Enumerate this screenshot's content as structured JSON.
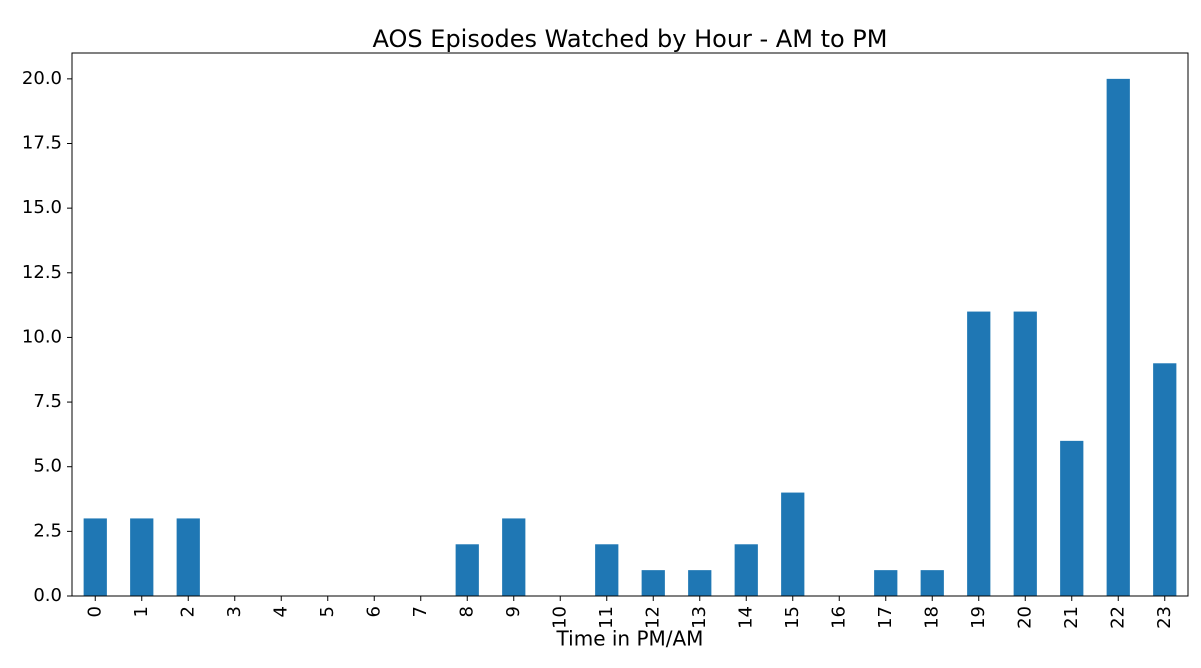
{
  "chart_data": {
    "type": "bar",
    "title": "AOS Episodes Watched by Hour - AM to PM",
    "x_label": "Time in PM/AM",
    "categories": [
      "0",
      "1",
      "2",
      "3",
      "4",
      "5",
      "6",
      "7",
      "8",
      "9",
      "10",
      "11",
      "12",
      "13",
      "14",
      "15",
      "16",
      "17",
      "18",
      "19",
      "20",
      "21",
      "22",
      "23"
    ],
    "values": [
      3,
      3,
      3,
      0,
      0,
      0,
      0,
      0,
      2,
      3,
      0,
      2,
      1,
      1,
      2,
      4,
      0,
      1,
      1,
      11,
      11,
      6,
      20,
      9
    ],
    "color": "#1f77b4",
    "ylim": [
      0,
      21
    ],
    "yticks": [
      {
        "value": 0,
        "label": "0.0"
      },
      {
        "value": 2.5,
        "label": "2.5"
      },
      {
        "value": 5,
        "label": "5.0"
      },
      {
        "value": 7.5,
        "label": "7.5"
      },
      {
        "value": 10,
        "label": "10.0"
      },
      {
        "value": 12.5,
        "label": "12.5"
      },
      {
        "value": 15,
        "label": "15.0"
      },
      {
        "value": 17.5,
        "label": "17.5"
      },
      {
        "value": 20,
        "label": "20.0"
      }
    ],
    "grid": false
  }
}
